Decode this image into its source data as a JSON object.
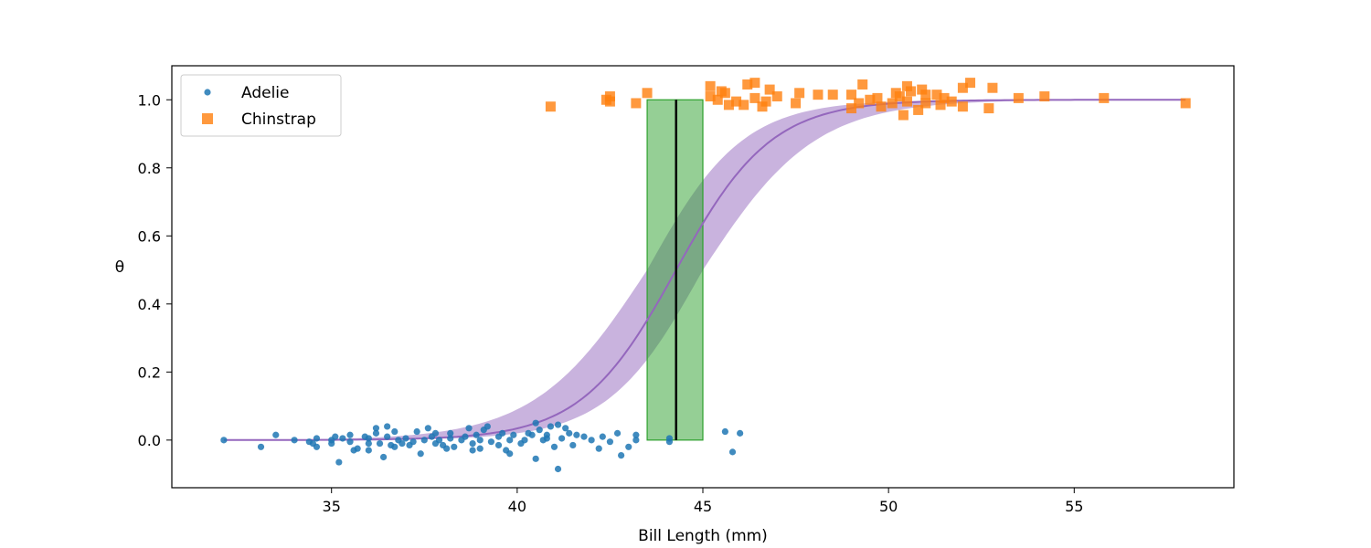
{
  "chart_data": {
    "type": "scatter",
    "title": "",
    "xlabel": "Bill Length (mm)",
    "ylabel": "θ",
    "xlim": [
      30.7,
      59.3
    ],
    "ylim": [
      -0.14,
      1.1
    ],
    "xticks": [
      35,
      40,
      45,
      50,
      55
    ],
    "yticks": [
      0.0,
      0.2,
      0.4,
      0.6,
      0.8,
      1.0
    ],
    "xtick_labels": [
      "35",
      "40",
      "45",
      "50",
      "55"
    ],
    "ytick_labels": [
      "0.0",
      "0.2",
      "0.4",
      "0.6",
      "0.8",
      "1.0"
    ],
    "grid": false,
    "legend_position": "top-left",
    "series": [
      {
        "name": "Adelie",
        "marker": "circle",
        "color": "#1f77b4",
        "points": [
          [
            32.1,
            0.0
          ],
          [
            33.1,
            -0.02
          ],
          [
            33.5,
            0.015
          ],
          [
            34.0,
            0.0
          ],
          [
            34.4,
            -0.005
          ],
          [
            34.5,
            -0.01
          ],
          [
            34.6,
            0.005
          ],
          [
            34.6,
            -0.02
          ],
          [
            35.0,
            -0.01
          ],
          [
            35.0,
            0.0
          ],
          [
            35.1,
            0.01
          ],
          [
            35.2,
            -0.065
          ],
          [
            35.3,
            0.005
          ],
          [
            35.5,
            0.015
          ],
          [
            35.5,
            -0.005
          ],
          [
            35.6,
            -0.03
          ],
          [
            35.7,
            -0.025
          ],
          [
            35.9,
            0.01
          ],
          [
            36.0,
            -0.01
          ],
          [
            36.0,
            0.005
          ],
          [
            36.0,
            -0.03
          ],
          [
            36.2,
            0.02
          ],
          [
            36.2,
            0.035
          ],
          [
            36.3,
            -0.01
          ],
          [
            36.4,
            -0.05
          ],
          [
            36.5,
            0.04
          ],
          [
            36.5,
            0.01
          ],
          [
            36.6,
            -0.015
          ],
          [
            36.7,
            0.025
          ],
          [
            36.7,
            -0.02
          ],
          [
            36.8,
            0.0
          ],
          [
            36.9,
            -0.01
          ],
          [
            37.0,
            0.005
          ],
          [
            37.1,
            -0.015
          ],
          [
            37.2,
            -0.005
          ],
          [
            37.3,
            0.025
          ],
          [
            37.4,
            -0.04
          ],
          [
            37.5,
            0.0
          ],
          [
            37.6,
            0.035
          ],
          [
            37.7,
            0.01
          ],
          [
            37.8,
            0.02
          ],
          [
            37.8,
            -0.01
          ],
          [
            37.9,
            0.0
          ],
          [
            38.0,
            -0.015
          ],
          [
            38.1,
            -0.025
          ],
          [
            38.2,
            0.02
          ],
          [
            38.2,
            0.005
          ],
          [
            38.3,
            -0.02
          ],
          [
            38.5,
            0.0
          ],
          [
            38.6,
            0.01
          ],
          [
            38.7,
            0.035
          ],
          [
            38.8,
            -0.01
          ],
          [
            38.8,
            -0.03
          ],
          [
            38.9,
            0.015
          ],
          [
            39.0,
            0.0
          ],
          [
            39.0,
            -0.025
          ],
          [
            39.1,
            0.03
          ],
          [
            39.2,
            0.04
          ],
          [
            39.3,
            -0.005
          ],
          [
            39.5,
            0.01
          ],
          [
            39.5,
            -0.015
          ],
          [
            39.6,
            0.02
          ],
          [
            39.7,
            -0.03
          ],
          [
            39.8,
            0.0
          ],
          [
            39.8,
            -0.04
          ],
          [
            39.9,
            0.015
          ],
          [
            40.1,
            -0.01
          ],
          [
            40.2,
            0.0
          ],
          [
            40.3,
            0.02
          ],
          [
            40.4,
            0.015
          ],
          [
            40.5,
            0.05
          ],
          [
            40.5,
            -0.055
          ],
          [
            40.6,
            0.03
          ],
          [
            40.7,
            0.0
          ],
          [
            40.8,
            0.015
          ],
          [
            40.8,
            0.005
          ],
          [
            40.9,
            0.04
          ],
          [
            41.0,
            -0.02
          ],
          [
            41.1,
            0.045
          ],
          [
            41.1,
            -0.085
          ],
          [
            41.2,
            0.005
          ],
          [
            41.3,
            0.035
          ],
          [
            41.4,
            0.02
          ],
          [
            41.5,
            -0.015
          ],
          [
            41.6,
            0.015
          ],
          [
            41.8,
            0.01
          ],
          [
            42.0,
            0.0
          ],
          [
            42.2,
            -0.025
          ],
          [
            42.3,
            0.01
          ],
          [
            42.5,
            -0.005
          ],
          [
            42.7,
            0.02
          ],
          [
            42.8,
            -0.045
          ],
          [
            43.0,
            -0.02
          ],
          [
            43.2,
            0.0
          ],
          [
            43.2,
            0.015
          ],
          [
            44.1,
            0.005
          ],
          [
            44.1,
            -0.005
          ],
          [
            45.6,
            0.025
          ],
          [
            45.8,
            -0.035
          ],
          [
            46.0,
            0.02
          ]
        ]
      },
      {
        "name": "Chinstrap",
        "marker": "square",
        "color": "#ff7f0e",
        "points": [
          [
            40.9,
            0.98
          ],
          [
            42.4,
            1.0
          ],
          [
            42.5,
            1.01
          ],
          [
            42.5,
            0.995
          ],
          [
            43.2,
            0.99
          ],
          [
            43.5,
            1.02
          ],
          [
            45.2,
            1.04
          ],
          [
            45.2,
            1.01
          ],
          [
            45.4,
            1.0
          ],
          [
            45.5,
            1.025
          ],
          [
            45.6,
            1.02
          ],
          [
            45.7,
            0.985
          ],
          [
            45.9,
            0.995
          ],
          [
            46.1,
            0.985
          ],
          [
            46.2,
            1.045
          ],
          [
            46.4,
            1.05
          ],
          [
            46.4,
            1.005
          ],
          [
            46.6,
            0.98
          ],
          [
            46.7,
            0.995
          ],
          [
            46.8,
            1.03
          ],
          [
            47.0,
            1.01
          ],
          [
            47.5,
            0.99
          ],
          [
            47.6,
            1.02
          ],
          [
            48.1,
            1.015
          ],
          [
            48.5,
            1.015
          ],
          [
            49.0,
            1.015
          ],
          [
            49.0,
            0.975
          ],
          [
            49.2,
            0.99
          ],
          [
            49.3,
            1.045
          ],
          [
            49.5,
            1.0
          ],
          [
            49.7,
            1.005
          ],
          [
            49.8,
            0.98
          ],
          [
            50.1,
            0.99
          ],
          [
            50.2,
            1.02
          ],
          [
            50.3,
            1.01
          ],
          [
            50.4,
            0.955
          ],
          [
            50.5,
            1.04
          ],
          [
            50.5,
            0.995
          ],
          [
            50.6,
            1.025
          ],
          [
            50.8,
            0.97
          ],
          [
            50.9,
            1.03
          ],
          [
            51.0,
            0.99
          ],
          [
            51.0,
            1.015
          ],
          [
            51.3,
            1.015
          ],
          [
            51.4,
            0.985
          ],
          [
            51.5,
            1.005
          ],
          [
            51.7,
            0.995
          ],
          [
            52.0,
            1.035
          ],
          [
            52.0,
            0.98
          ],
          [
            52.2,
            1.05
          ],
          [
            52.7,
            0.975
          ],
          [
            52.8,
            1.035
          ],
          [
            53.5,
            1.005
          ],
          [
            54.2,
            1.01
          ],
          [
            55.8,
            1.005
          ],
          [
            58.0,
            0.99
          ]
        ]
      }
    ],
    "fitted_curve": {
      "color": "#9467bd",
      "band_color": "#9467bd",
      "x_range": [
        32.1,
        58.0
      ],
      "midpoint": 44.28,
      "slope": 0.78,
      "slope_band": [
        0.78,
        0.66
      ],
      "midpoint_band": [
        43.5,
        45.0
      ]
    },
    "decision_boundary": {
      "mean": 44.28,
      "hdi_low": 43.5,
      "hdi_high": 45.0,
      "band_color": "#2ca02c",
      "line_color": "#000000"
    }
  }
}
